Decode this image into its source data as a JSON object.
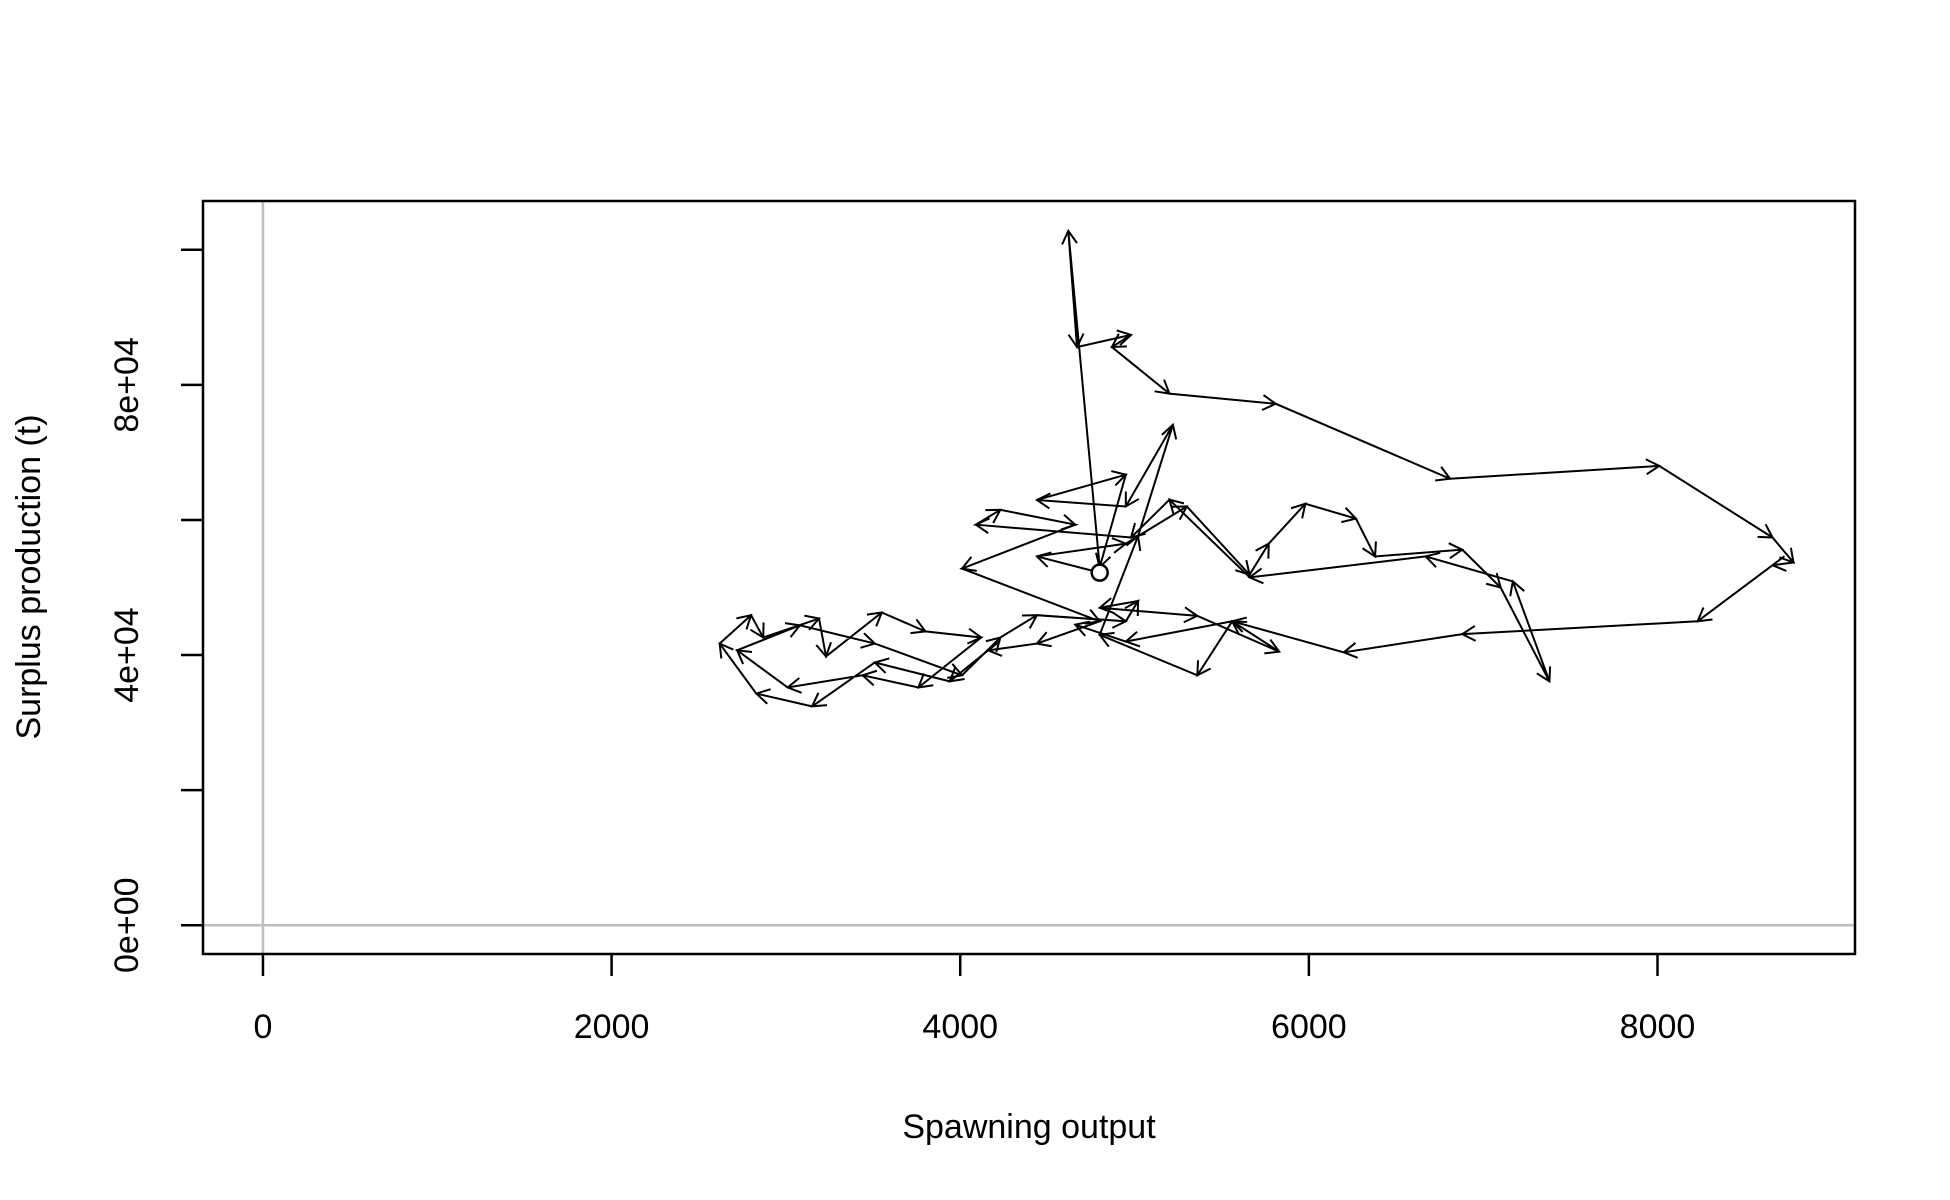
{
  "chart_data": {
    "type": "line",
    "x_label": "Spawning output",
    "y_label": "Surplus production (t)",
    "x": [
      4800,
      4440,
      4950,
      5300,
      5660,
      5770,
      5980,
      6270,
      6380,
      6880,
      7100,
      7380,
      7170,
      6670,
      5660,
      5200,
      4980,
      4090,
      4230,
      4660,
      4010,
      4800,
      4440,
      4160,
      3940,
      3510,
      3150,
      2830,
      2620,
      2800,
      2870,
      3190,
      3230,
      3550,
      3800,
      4120,
      3760,
      3440,
      3010,
      2720,
      3080,
      3510,
      4010,
      4230,
      4440,
      4950,
      5020,
      4800,
      5360,
      5830,
      5560,
      5360,
      4800,
      5020,
      5220,
      4950,
      4440,
      4950,
      4800,
      4620,
      4670,
      4980,
      4870,
      5200,
      5810,
      6810,
      8010,
      8660,
      8780,
      8660,
      8230,
      6880,
      6200,
      5560,
      4950,
      4660
    ],
    "values": [
      52200,
      54600,
      56500,
      62000,
      51900,
      56500,
      62400,
      60200,
      54600,
      55600,
      50000,
      36100,
      50900,
      54600,
      51500,
      63000,
      57400,
      59300,
      61500,
      59300,
      52800,
      45000,
      41700,
      40700,
      36100,
      38900,
      32400,
      34300,
      41700,
      45900,
      42600,
      45400,
      39800,
      46300,
      43500,
      42600,
      35200,
      37000,
      35200,
      40700,
      44400,
      41700,
      37000,
      42600,
      45900,
      45000,
      48000,
      47000,
      45800,
      40500,
      45000,
      37000,
      43000,
      57600,
      74100,
      62000,
      62960,
      66700,
      53000,
      102800,
      85600,
      87400,
      85600,
      78700,
      77200,
      66100,
      68000,
      57400,
      53700,
      53300,
      45000,
      43100,
      40400,
      45000,
      42000,
      44500
    ],
    "color": "#000000",
    "arrows": true,
    "start_marker": "circle",
    "xlim": [
      -344,
      9133
    ],
    "ylim": [
      -4259,
      107222
    ],
    "xticks": [
      0,
      2000,
      4000,
      6000,
      8000
    ],
    "yticks": [
      {
        "value": 0,
        "label": "0e+00"
      },
      {
        "value": 20000,
        "label": null
      },
      {
        "value": 40000,
        "label": "4e+04"
      },
      {
        "value": 60000,
        "label": null
      },
      {
        "value": 80000,
        "label": "8e+04"
      },
      {
        "value": 100000,
        "label": null
      }
    ],
    "hline": 0,
    "vline": 0,
    "ref_color": "#bebebe"
  }
}
